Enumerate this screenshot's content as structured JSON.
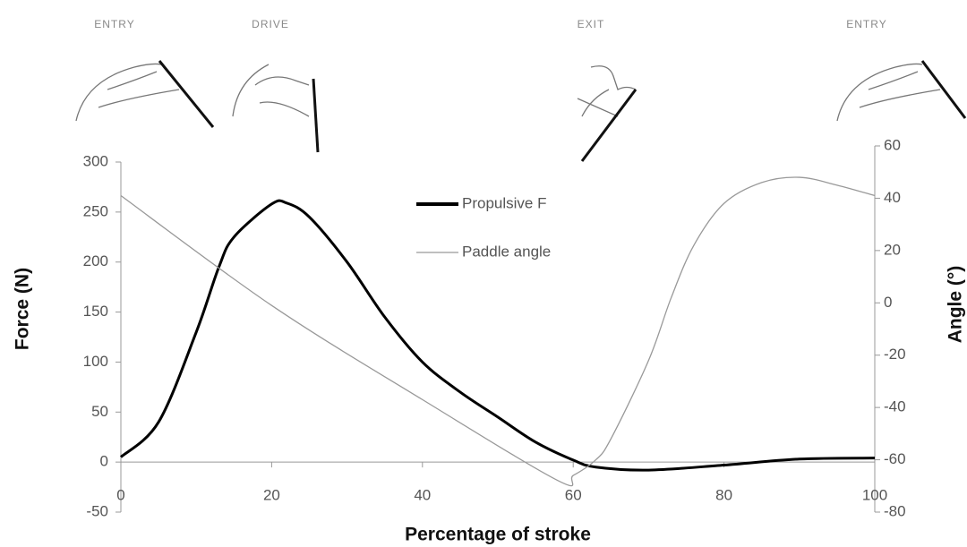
{
  "chart_data": {
    "type": "line",
    "annotations": [
      "ENTRY",
      "DRIVE",
      "EXIT",
      "ENTRY"
    ],
    "x_label": "Percentage of stroke",
    "y_label": "Force (N)",
    "y2_label": "Angle (°)",
    "series": [
      {
        "name": "Propulsive F",
        "color": "#000000",
        "x": [
          0,
          5,
          10,
          13,
          15,
          20,
          22,
          25,
          30,
          35,
          40,
          45,
          50,
          55,
          60,
          63,
          70,
          80,
          90,
          100
        ],
        "values": [
          5,
          40,
          130,
          195,
          225,
          258,
          259,
          245,
          200,
          145,
          100,
          70,
          45,
          20,
          2,
          -5,
          -8,
          -3,
          3,
          4
        ]
      },
      {
        "name": "Paddle angle",
        "color": "#999999",
        "axis": "y2",
        "x": [
          0,
          20,
          40,
          58,
          60,
          63,
          65,
          70,
          73,
          76,
          80,
          85,
          90,
          95,
          100
        ],
        "values": [
          41,
          -1,
          -37,
          -68,
          -66,
          -60,
          -52,
          -22,
          2,
          22,
          38,
          46,
          48,
          45,
          41
        ]
      }
    ],
    "xlim": [
      0,
      100
    ],
    "xticks": [
      0,
      20,
      40,
      60,
      80,
      100
    ],
    "ylim": [
      -50,
      300
    ],
    "yticks": [
      -50,
      0,
      50,
      100,
      150,
      200,
      250,
      300
    ],
    "y2lim": [
      -80,
      60
    ],
    "y2ticks": [
      -80,
      -60,
      -40,
      -20,
      0,
      20,
      40,
      60
    ]
  }
}
